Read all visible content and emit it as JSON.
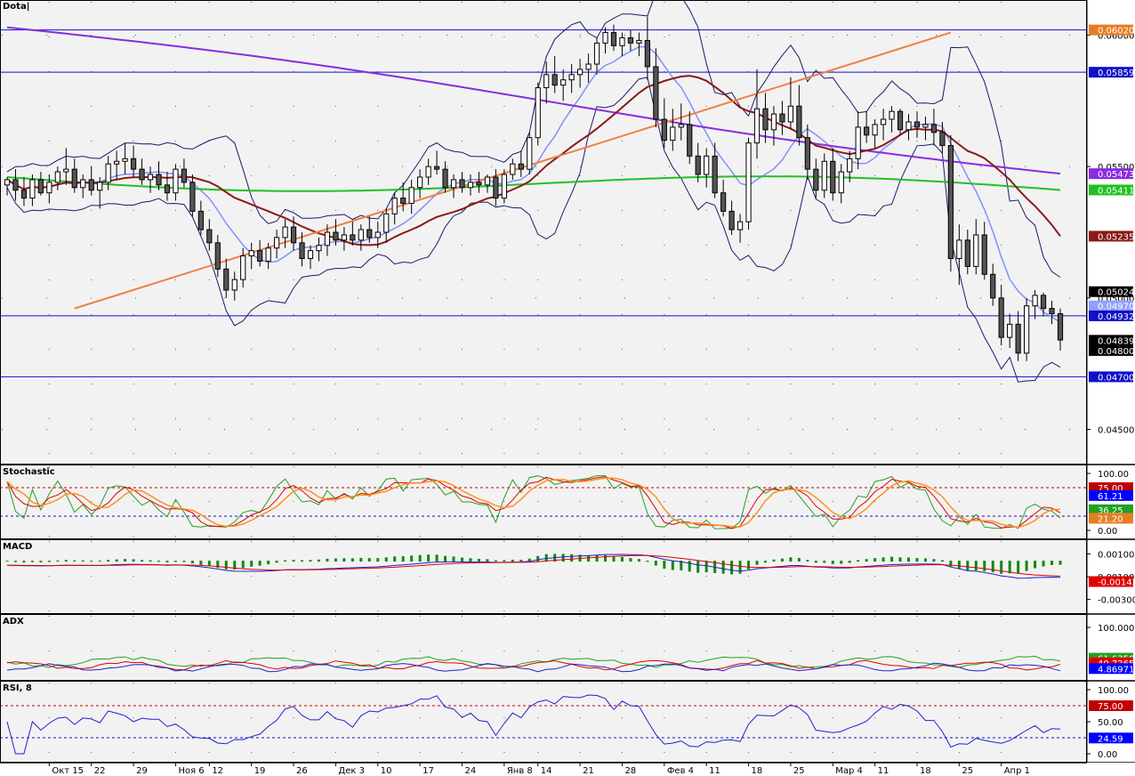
{
  "chart_data": [
    {
      "type": "candlestick",
      "title": "Dota|",
      "y_ticks": [
        "0.06000",
        "0.05500",
        "0.05000",
        "0.04500"
      ],
      "y_range": [
        0.044,
        0.061
      ],
      "hlines": [
        0.0602,
        0.05859,
        0.04932,
        0.047
      ],
      "price_labels": [
        {
          "text": "0.06020",
          "color": "#e67e22"
        },
        {
          "text": "0.05859",
          "color": "#1010c8"
        },
        {
          "text": "0.05473",
          "color": "#8a2be2"
        },
        {
          "text": "0.05411",
          "color": "#22c022"
        },
        {
          "text": "0.05235",
          "color": "#8b1a1a"
        },
        {
          "text": "0.05024",
          "color": "#000000"
        },
        {
          "text": "0.04970",
          "color": "#8fa0ff"
        },
        {
          "text": "0.04932",
          "color": "#1010c8"
        },
        {
          "text": "0.04839",
          "color": "#000000"
        },
        {
          "text": "0.04800",
          "color": "#000000"
        },
        {
          "text": "0.04700",
          "color": "#1010c8"
        }
      ],
      "trendlines": [
        {
          "from_index": 8,
          "from_price": 0.0496,
          "to_index": 112,
          "to_price": 0.0601,
          "color": "#f08040"
        }
      ],
      "candles": [
        [
          0.0543,
          0.0546,
          0.0539,
          0.0545
        ],
        [
          0.0545,
          0.0549,
          0.0537,
          0.0541
        ],
        [
          0.0541,
          0.0546,
          0.0535,
          0.0538
        ],
        [
          0.0538,
          0.0547,
          0.0535,
          0.0545
        ],
        [
          0.0545,
          0.0548,
          0.0539,
          0.054
        ],
        [
          0.054,
          0.0547,
          0.0536,
          0.0544
        ],
        [
          0.0544,
          0.055,
          0.0541,
          0.0548
        ],
        [
          0.0548,
          0.0557,
          0.0543,
          0.0549
        ],
        [
          0.0549,
          0.0553,
          0.054,
          0.0542
        ],
        [
          0.0542,
          0.0547,
          0.0538,
          0.0545
        ],
        [
          0.0545,
          0.055,
          0.0539,
          0.0541
        ],
        [
          0.0541,
          0.0546,
          0.0534,
          0.0544
        ],
        [
          0.0544,
          0.0554,
          0.0541,
          0.0551
        ],
        [
          0.0551,
          0.0556,
          0.0545,
          0.0552
        ],
        [
          0.0552,
          0.0559,
          0.0547,
          0.0553
        ],
        [
          0.0553,
          0.0558,
          0.0546,
          0.0549
        ],
        [
          0.0549,
          0.0553,
          0.0543,
          0.0545
        ],
        [
          0.0545,
          0.055,
          0.054,
          0.0547
        ],
        [
          0.0547,
          0.0552,
          0.0541,
          0.0543
        ],
        [
          0.0543,
          0.0548,
          0.0537,
          0.054
        ],
        [
          0.054,
          0.0551,
          0.0537,
          0.0549
        ],
        [
          0.0549,
          0.0553,
          0.0542,
          0.0544
        ],
        [
          0.0544,
          0.0547,
          0.0531,
          0.0533
        ],
        [
          0.0533,
          0.0537,
          0.0524,
          0.0526
        ],
        [
          0.0526,
          0.053,
          0.0518,
          0.0521
        ],
        [
          0.0521,
          0.0524,
          0.0508,
          0.0511
        ],
        [
          0.0511,
          0.0515,
          0.05,
          0.0503
        ],
        [
          0.0503,
          0.051,
          0.0499,
          0.0507
        ],
        [
          0.0507,
          0.0519,
          0.0504,
          0.0516
        ],
        [
          0.0516,
          0.0521,
          0.0511,
          0.0518
        ],
        [
          0.0518,
          0.0522,
          0.0512,
          0.0514
        ],
        [
          0.0514,
          0.0521,
          0.0511,
          0.0519
        ],
        [
          0.0519,
          0.0526,
          0.0515,
          0.0523
        ],
        [
          0.0523,
          0.053,
          0.0519,
          0.0527
        ],
        [
          0.0527,
          0.0531,
          0.0518,
          0.0521
        ],
        [
          0.0521,
          0.0525,
          0.0512,
          0.0515
        ],
        [
          0.0515,
          0.052,
          0.0511,
          0.0518
        ],
        [
          0.0518,
          0.0523,
          0.0514,
          0.052
        ],
        [
          0.052,
          0.0528,
          0.0516,
          0.0525
        ],
        [
          0.0525,
          0.053,
          0.052,
          0.0522
        ],
        [
          0.0522,
          0.0527,
          0.0518,
          0.0524
        ],
        [
          0.0524,
          0.0529,
          0.052,
          0.0522
        ],
        [
          0.0522,
          0.0528,
          0.0518,
          0.0526
        ],
        [
          0.0526,
          0.0531,
          0.0521,
          0.0523
        ],
        [
          0.0523,
          0.0529,
          0.0519,
          0.0525
        ],
        [
          0.0525,
          0.0534,
          0.0521,
          0.0532
        ],
        [
          0.0532,
          0.054,
          0.0528,
          0.0538
        ],
        [
          0.0538,
          0.0544,
          0.0533,
          0.0536
        ],
        [
          0.0536,
          0.0545,
          0.0532,
          0.0542
        ],
        [
          0.0542,
          0.0549,
          0.0538,
          0.0546
        ],
        [
          0.0546,
          0.0553,
          0.0543,
          0.055
        ],
        [
          0.055,
          0.0556,
          0.0547,
          0.0549
        ],
        [
          0.0549,
          0.0552,
          0.054,
          0.0542
        ],
        [
          0.0542,
          0.0547,
          0.0538,
          0.0545
        ],
        [
          0.0545,
          0.0548,
          0.054,
          0.0542
        ],
        [
          0.0542,
          0.0547,
          0.0539,
          0.0544
        ],
        [
          0.0544,
          0.0548,
          0.054,
          0.0543
        ],
        [
          0.0543,
          0.0547,
          0.054,
          0.0546
        ],
        [
          0.0546,
          0.0549,
          0.0535,
          0.0538
        ],
        [
          0.0538,
          0.0549,
          0.0536,
          0.0547
        ],
        [
          0.0547,
          0.0553,
          0.0545,
          0.0551
        ],
        [
          0.0551,
          0.0556,
          0.0546,
          0.0549
        ],
        [
          0.0549,
          0.0563,
          0.0547,
          0.0561
        ],
        [
          0.0561,
          0.0582,
          0.0558,
          0.058
        ],
        [
          0.058,
          0.059,
          0.0574,
          0.0585
        ],
        [
          0.0585,
          0.0592,
          0.0578,
          0.0581
        ],
        [
          0.0581,
          0.0587,
          0.0575,
          0.0583
        ],
        [
          0.0583,
          0.0589,
          0.0578,
          0.0585
        ],
        [
          0.0585,
          0.0591,
          0.058,
          0.0587
        ],
        [
          0.0587,
          0.0593,
          0.0582,
          0.0589
        ],
        [
          0.0589,
          0.0599,
          0.0585,
          0.0597
        ],
        [
          0.0597,
          0.0603,
          0.0593,
          0.0601
        ],
        [
          0.0601,
          0.0604,
          0.0594,
          0.0596
        ],
        [
          0.0596,
          0.0601,
          0.0592,
          0.0599
        ],
        [
          0.0599,
          0.0602,
          0.0594,
          0.0597
        ],
        [
          0.0597,
          0.0601,
          0.0592,
          0.0598
        ],
        [
          0.0598,
          0.0607,
          0.0583,
          0.0588
        ],
        [
          0.0588,
          0.0595,
          0.0565,
          0.0568
        ],
        [
          0.0568,
          0.0576,
          0.0557,
          0.056
        ],
        [
          0.056,
          0.0572,
          0.0556,
          0.0565
        ],
        [
          0.0565,
          0.0574,
          0.056,
          0.0566
        ],
        [
          0.0566,
          0.0571,
          0.0551,
          0.0554
        ],
        [
          0.0554,
          0.0559,
          0.0544,
          0.0547
        ],
        [
          0.0547,
          0.0557,
          0.0542,
          0.0554
        ],
        [
          0.0554,
          0.0559,
          0.0538,
          0.054
        ],
        [
          0.054,
          0.0545,
          0.0531,
          0.0533
        ],
        [
          0.0533,
          0.0537,
          0.0524,
          0.0526
        ],
        [
          0.0526,
          0.0532,
          0.0521,
          0.0529
        ],
        [
          0.0529,
          0.0561,
          0.0526,
          0.0559
        ],
        [
          0.0559,
          0.0587,
          0.0553,
          0.0572
        ],
        [
          0.0572,
          0.0578,
          0.0559,
          0.0564
        ],
        [
          0.0564,
          0.0573,
          0.0558,
          0.057
        ],
        [
          0.057,
          0.0575,
          0.0562,
          0.0567
        ],
        [
          0.0567,
          0.0584,
          0.0564,
          0.0573
        ],
        [
          0.0573,
          0.0581,
          0.0558,
          0.0561
        ],
        [
          0.0561,
          0.0566,
          0.0545,
          0.0549
        ],
        [
          0.0549,
          0.0553,
          0.0538,
          0.0541
        ],
        [
          0.0541,
          0.0555,
          0.0538,
          0.0552
        ],
        [
          0.0552,
          0.0557,
          0.0537,
          0.054
        ],
        [
          0.054,
          0.0551,
          0.0536,
          0.0548
        ],
        [
          0.0548,
          0.0556,
          0.0544,
          0.0553
        ],
        [
          0.0553,
          0.0571,
          0.0549,
          0.0565
        ],
        [
          0.0565,
          0.0571,
          0.0559,
          0.0562
        ],
        [
          0.0562,
          0.0568,
          0.0557,
          0.0566
        ],
        [
          0.0566,
          0.0572,
          0.056,
          0.0568
        ],
        [
          0.0568,
          0.0573,
          0.0563,
          0.0571
        ],
        [
          0.0571,
          0.0572,
          0.0562,
          0.0564
        ],
        [
          0.0564,
          0.057,
          0.056,
          0.0567
        ],
        [
          0.0567,
          0.0571,
          0.0561,
          0.0565
        ],
        [
          0.0565,
          0.0569,
          0.056,
          0.0566
        ],
        [
          0.0566,
          0.0572,
          0.0558,
          0.0563
        ],
        [
          0.0563,
          0.0567,
          0.0555,
          0.0558
        ],
        [
          0.0558,
          0.0562,
          0.051,
          0.0515
        ],
        [
          0.0515,
          0.0528,
          0.0505,
          0.0522
        ],
        [
          0.0522,
          0.0526,
          0.0509,
          0.0512
        ],
        [
          0.0512,
          0.053,
          0.0509,
          0.0524
        ],
        [
          0.0524,
          0.0529,
          0.0507,
          0.0509
        ],
        [
          0.0509,
          0.0513,
          0.0497,
          0.05
        ],
        [
          0.05,
          0.0505,
          0.0482,
          0.0485
        ],
        [
          0.0485,
          0.0494,
          0.0481,
          0.049
        ],
        [
          0.049,
          0.0495,
          0.0476,
          0.0479
        ],
        [
          0.0479,
          0.05,
          0.0476,
          0.0497
        ],
        [
          0.0497,
          0.0503,
          0.0492,
          0.0501
        ],
        [
          0.0501,
          0.0502,
          0.0493,
          0.0496
        ],
        [
          0.0496,
          0.0499,
          0.049,
          0.0494
        ],
        [
          0.0494,
          0.0496,
          0.048,
          0.0484
        ]
      ],
      "bollinger": {
        "upper_color": "#1a1a6e",
        "lower_color": "#1a1a6e",
        "mid_color": "#8090ff"
      },
      "moving_averages": [
        {
          "color": "#8b1a1a",
          "last": 0.05235
        },
        {
          "color": "#22c022",
          "last": 0.05411
        },
        {
          "color": "#8a2be2",
          "last": 0.05473
        }
      ]
    },
    {
      "type": "line",
      "title": "Stochastic",
      "y_ticks": [
        "100.00",
        "0.00"
      ],
      "levels": [
        75.0,
        25.0
      ],
      "value_labels": [
        {
          "text": "75.00",
          "color": "#c00000"
        },
        {
          "text": "61.21",
          "color": "#0000ff"
        },
        {
          "text": "36.25",
          "color": "#22a022"
        },
        {
          "text": "21.20",
          "color": "#e67e22"
        }
      ]
    },
    {
      "type": "line",
      "title": "MACD",
      "y_ticks": [
        "0.00100",
        "0.00100",
        "-0.00300"
      ],
      "value_labels": [
        {
          "text": "-0.00143",
          "color": "#e00000"
        }
      ]
    },
    {
      "type": "line",
      "title": "ADX",
      "y_ticks": [
        "100.000000"
      ],
      "value_labels": [
        {
          "text": "61.63506",
          "color": "#22a022"
        },
        {
          "text": "40.72656",
          "color": "#e00000"
        },
        {
          "text": "4.86971",
          "color": "#0000ff"
        }
      ]
    },
    {
      "type": "line",
      "title": "RSI, 8",
      "y_ticks": [
        "100.00",
        "75.00",
        "50.00",
        "24.59",
        "0.00"
      ],
      "levels": [
        75.0,
        25.0
      ],
      "value_labels": [
        {
          "text": "75.00",
          "color": "#c00000"
        },
        {
          "text": "24.59",
          "color": "#0000ff"
        }
      ]
    }
  ],
  "x_axis": {
    "labels": [
      {
        "text": "Окт 15",
        "i": 5
      },
      {
        "text": "22",
        "i": 10
      },
      {
        "text": "29",
        "i": 15
      },
      {
        "text": "Ноя 6",
        "i": 20
      },
      {
        "text": "12",
        "i": 24
      },
      {
        "text": "19",
        "i": 29
      },
      {
        "text": "26",
        "i": 34
      },
      {
        "text": "Дек 3",
        "i": 39
      },
      {
        "text": "10",
        "i": 44
      },
      {
        "text": "17",
        "i": 49
      },
      {
        "text": "24",
        "i": 54
      },
      {
        "text": "Янв 8",
        "i": 59
      },
      {
        "text": "14",
        "i": 63
      },
      {
        "text": "21",
        "i": 68
      },
      {
        "text": "28",
        "i": 73
      },
      {
        "text": "Фев 4",
        "i": 78
      },
      {
        "text": "11",
        "i": 83
      },
      {
        "text": "18",
        "i": 88
      },
      {
        "text": "25",
        "i": 93
      },
      {
        "text": "Мар 4",
        "i": 98
      },
      {
        "text": "11",
        "i": 103
      },
      {
        "text": "18",
        "i": 108
      },
      {
        "text": "25",
        "i": 113
      },
      {
        "text": "Апр 1",
        "i": 118
      }
    ]
  }
}
